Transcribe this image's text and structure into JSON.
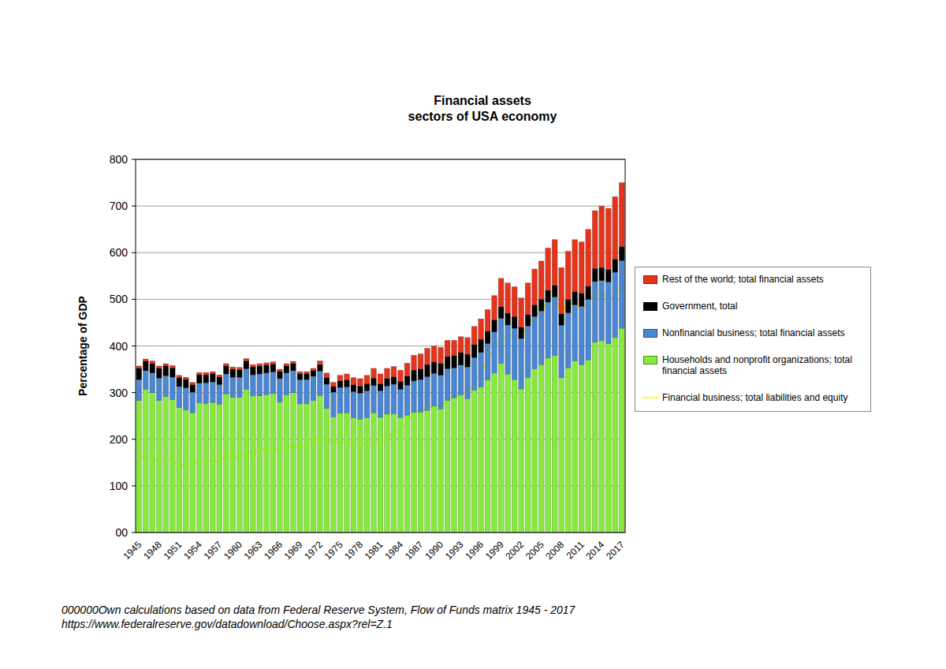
{
  "chart_data": {
    "type": "bar",
    "title": "Financial assets",
    "subtitle": "sectors of USA economy",
    "y_label": "Percentage of GDP",
    "annotations": [
      "000000Own calculations based on data from Federal Reserve System, Flow of Funds matrix 1945 - 2017",
      "https://www.federalreserve.gov/datadownload/Choose.aspx?rel=Z.1"
    ],
    "stacked": true,
    "grid": true,
    "legend": "right",
    "ylim": [
      0,
      800
    ],
    "yticks": [
      {
        "value": 0,
        "label": "00"
      },
      100,
      200,
      300,
      400,
      500,
      600,
      700,
      800
    ],
    "categories": [
      1945,
      null,
      null,
      1948,
      null,
      null,
      1951,
      null,
      null,
      1954,
      null,
      null,
      1957,
      null,
      null,
      1960,
      null,
      null,
      1963,
      null,
      null,
      1966,
      null,
      null,
      1969,
      null,
      null,
      1972,
      null,
      null,
      1975,
      null,
      null,
      1978,
      null,
      null,
      1981,
      null,
      null,
      1984,
      null,
      null,
      1987,
      null,
      null,
      1990,
      null,
      null,
      1993,
      null,
      null,
      1996,
      null,
      null,
      1999,
      null,
      null,
      2002,
      null,
      null,
      2005,
      null,
      null,
      2008,
      null,
      null,
      2011,
      null,
      null,
      2014,
      null,
      null,
      2017
    ],
    "series": [
      {
        "name": "Rest of the world; total financial assets",
        "color": "#e5341b",
        "values": [
          5,
          5,
          6,
          5,
          5,
          5,
          5,
          5,
          5,
          5,
          5,
          5,
          5,
          5,
          5,
          5,
          5,
          5,
          5,
          5,
          5,
          5,
          5,
          5,
          5,
          5,
          5,
          8,
          10,
          9,
          12,
          13,
          15,
          16,
          18,
          21,
          21,
          22,
          22,
          24,
          28,
          32,
          32,
          35,
          34,
          35,
          35,
          33,
          34,
          36,
          39,
          44,
          46,
          52,
          61,
          65,
          64,
          63,
          68,
          77,
          82,
          91,
          98,
          99,
          104,
          112,
          110,
          122,
          124,
          132,
          131,
          134,
          137
        ]
      },
      {
        "name": "Government, total",
        "color": "#000000",
        "values": [
          24,
          20,
          20,
          21,
          21,
          20,
          19,
          18,
          16,
          18,
          17,
          17,
          16,
          17,
          17,
          16,
          17,
          17,
          17,
          17,
          17,
          15,
          15,
          15,
          12,
          12,
          12,
          14,
          14,
          12,
          14,
          15,
          15,
          15,
          15,
          16,
          15,
          16,
          16,
          17,
          19,
          23,
          23,
          26,
          25,
          25,
          26,
          26,
          27,
          27,
          28,
          28,
          27,
          26,
          25,
          25,
          25,
          24,
          24,
          25,
          25,
          25,
          25,
          25,
          28,
          28,
          28,
          28,
          28,
          28,
          27,
          28,
          30
        ]
      },
      {
        "name": "Nonfinancial business; total financial assets",
        "color": "#4a86d2",
        "values": [
          45,
          40,
          42,
          48,
          44,
          48,
          45,
          47,
          44,
          42,
          44,
          44,
          42,
          43,
          43,
          43,
          44,
          45,
          47,
          46,
          46,
          50,
          47,
          47,
          52,
          52,
          52,
          52,
          52,
          53,
          55,
          55,
          56,
          56,
          58,
          58,
          57,
          60,
          63,
          60,
          64,
          67,
          70,
          72,
          70,
          72,
          68,
          64,
          64,
          68,
          70,
          74,
          78,
          88,
          96,
          105,
          110,
          108,
          110,
          112,
          115,
          120,
          125,
          112,
          118,
          120,
          125,
          130,
          130,
          128,
          132,
          140,
          145
        ]
      },
      {
        "name": "Households and nonprofit organizations; total financial assets",
        "color": "#86ea3c",
        "values": [
          283,
          307,
          300,
          283,
          292,
          285,
          268,
          263,
          257,
          278,
          277,
          279,
          275,
          297,
          290,
          290,
          307,
          293,
          293,
          296,
          298,
          280,
          295,
          300,
          276,
          276,
          283,
          294,
          266,
          248,
          256,
          257,
          246,
          243,
          246,
          257,
          247,
          254,
          255,
          247,
          252,
          258,
          258,
          262,
          271,
          265,
          283,
          289,
          295,
          287,
          305,
          312,
          327,
          342,
          363,
          340,
          328,
          308,
          333,
          351,
          360,
          374,
          380,
          332,
          353,
          368,
          360,
          370,
          408,
          412,
          405,
          418,
          438
        ]
      },
      {
        "name": "Financial business; total liabilities and equity",
        "color": "#ffff33",
        "type": "line",
        "values": [
          163,
          163,
          158,
          152,
          155,
          155,
          143,
          145,
          147,
          153,
          153,
          153,
          155,
          163,
          163,
          163,
          172,
          173,
          177,
          180,
          182,
          178,
          183,
          185,
          183,
          187,
          195,
          202,
          197,
          192,
          193,
          192,
          190,
          190,
          190,
          193,
          195,
          203,
          213,
          220,
          235,
          258,
          262,
          267,
          272,
          270,
          283,
          290,
          300,
          300,
          320,
          345,
          370,
          395,
          418,
          420,
          425,
          420,
          445,
          465,
          475,
          495,
          505,
          470,
          492,
          490,
          480,
          488,
          518,
          518,
          500,
          510,
          527
        ]
      }
    ]
  }
}
